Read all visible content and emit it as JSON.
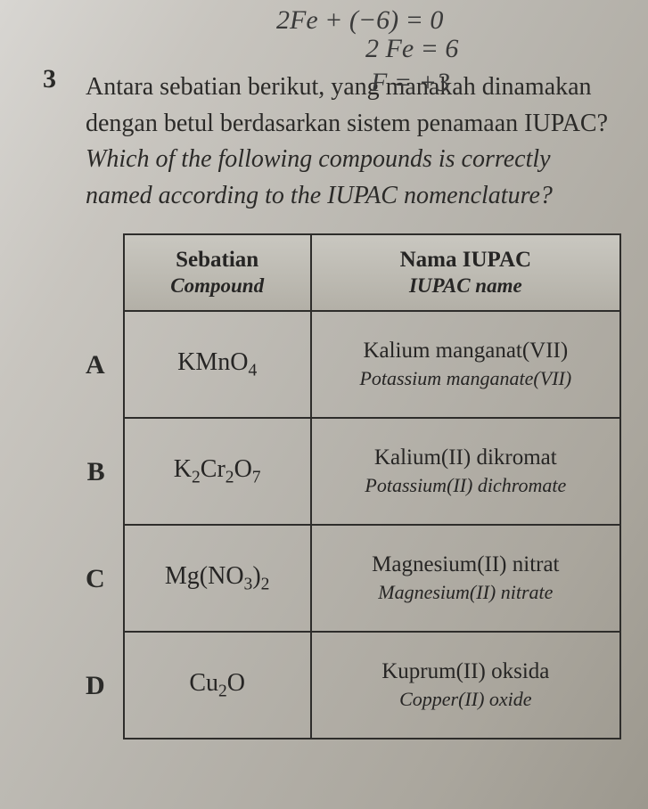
{
  "handwriting": {
    "line1": "2Fe + (−6) = 0",
    "line2": "2 Fe = 6",
    "line3": "F = +3"
  },
  "question": {
    "number": "3",
    "malay": "Antara sebatian berikut, yang manakah dinamakan dengan betul berdasarkan sistem penamaan IUPAC?",
    "english": "Which of the following compounds is correctly named according to the IUPAC nomenclature?"
  },
  "table": {
    "headers": {
      "compound_malay": "Sebatian",
      "compound_en": "Compound",
      "name_malay": "Nama IUPAC",
      "name_en": "IUPAC name"
    },
    "rows": [
      {
        "option": "A",
        "formula_html": "KMnO<sub>4</sub>",
        "name_malay": "Kalium manganat(VII)",
        "name_en": "Potassium manganate(VII)"
      },
      {
        "option": "B",
        "formula_html": "K<sub>2</sub>Cr<sub>2</sub>O<sub>7</sub>",
        "name_malay": "Kalium(II) dikromat",
        "name_en": "Potassium(II) dichromate"
      },
      {
        "option": "C",
        "formula_html": "Mg(NO<sub>3</sub>)<sub>2</sub>",
        "name_malay": "Magnesium(II) nitrat",
        "name_en": "Magnesium(II) nitrate"
      },
      {
        "option": "D",
        "formula_html": "Cu<sub>2</sub>O",
        "name_malay": "Kuprum(II) oksida",
        "name_en": "Copper(II) oxide"
      }
    ]
  }
}
